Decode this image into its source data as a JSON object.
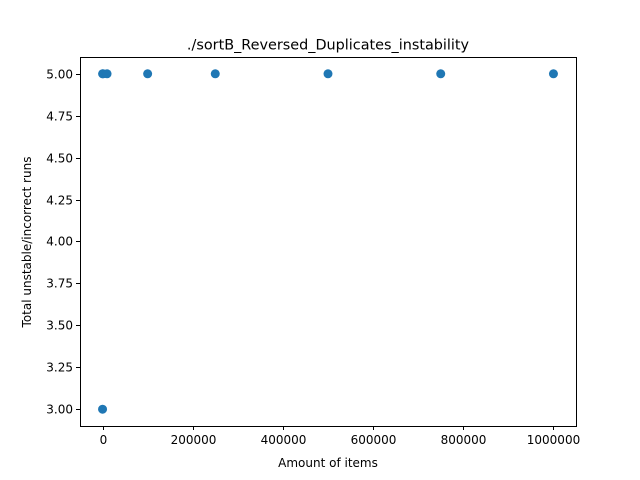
{
  "chart_data": {
    "type": "scatter",
    "title": "./sortB_Reversed_Duplicates_instability",
    "xlabel": "Amount of items",
    "ylabel": "Total unstable/incorrect runs",
    "xlim": [
      -50000,
      1050000
    ],
    "ylim": [
      2.9,
      5.1
    ],
    "xticks": [
      0,
      200000,
      400000,
      600000,
      800000,
      1000000
    ],
    "xtick_labels": [
      "0",
      "200000",
      "400000",
      "600000",
      "800000",
      "1000000"
    ],
    "yticks": [
      3.0,
      3.25,
      3.5,
      3.75,
      4.0,
      4.25,
      4.5,
      4.75,
      5.0
    ],
    "ytick_labels": [
      "3.00",
      "3.25",
      "3.50",
      "3.75",
      "4.00",
      "4.25",
      "4.50",
      "4.75",
      "5.00"
    ],
    "grid": false,
    "color": "#1f77b4",
    "points": [
      {
        "x": 10,
        "y": 3
      },
      {
        "x": 100,
        "y": 5
      },
      {
        "x": 1000,
        "y": 5
      },
      {
        "x": 10000,
        "y": 5
      },
      {
        "x": 100000,
        "y": 5
      },
      {
        "x": 250000,
        "y": 5
      },
      {
        "x": 500000,
        "y": 5
      },
      {
        "x": 750000,
        "y": 5
      },
      {
        "x": 1000000,
        "y": 5
      }
    ]
  }
}
